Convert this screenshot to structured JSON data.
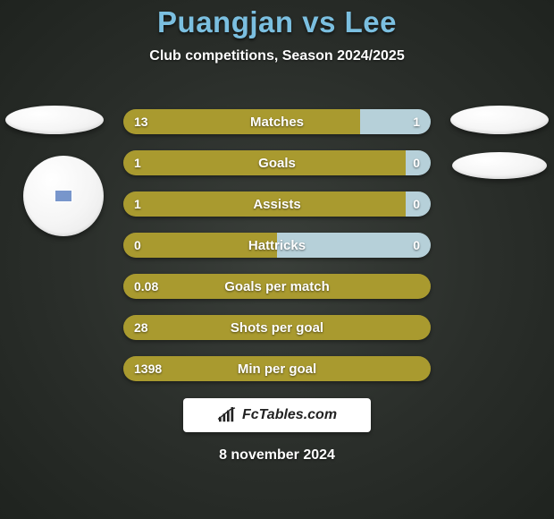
{
  "title_color": "#7bbfe0",
  "title": "Puangjan vs Lee",
  "subtitle": "Club competitions, Season 2024/2025",
  "colors": {
    "left": "#a99a2f",
    "right": "#b6d0d9",
    "neutral": "#a99a2f"
  },
  "bars": [
    {
      "label": "Matches",
      "left": "13",
      "right": "1",
      "left_pct": 77,
      "right_pct": 23,
      "right_visible": true
    },
    {
      "label": "Goals",
      "left": "1",
      "right": "0",
      "left_pct": 92,
      "right_pct": 8,
      "right_visible": true
    },
    {
      "label": "Assists",
      "left": "1",
      "right": "0",
      "left_pct": 92,
      "right_pct": 8,
      "right_visible": true
    },
    {
      "label": "Hattricks",
      "left": "0",
      "right": "0",
      "left_pct": 50,
      "right_pct": 50,
      "right_visible": true
    },
    {
      "label": "Goals per match",
      "left": "0.08",
      "right": "",
      "left_pct": 100,
      "right_pct": 0,
      "right_visible": false
    },
    {
      "label": "Shots per goal",
      "left": "28",
      "right": "",
      "left_pct": 100,
      "right_pct": 0,
      "right_visible": false
    },
    {
      "label": "Min per goal",
      "left": "1398",
      "right": "",
      "left_pct": 100,
      "right_pct": 0,
      "right_visible": false
    }
  ],
  "brand": "FcTables.com",
  "date": "8 november 2024"
}
